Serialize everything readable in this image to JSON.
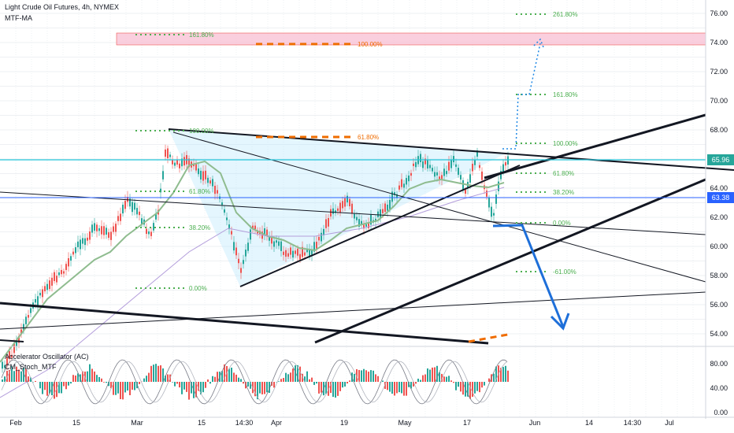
{
  "header": {
    "title": "Light Crude Oil Futures, 4h, NYMEX",
    "indicator": "MTF-MA"
  },
  "sub_pane": {
    "indicator_1": "Accelerator Oscillator (AC)",
    "indicator_2": "CM_Stoch_MTF"
  },
  "price_axis": {
    "ticks": [
      "76.00",
      "74.00",
      "72.00",
      "70.00",
      "68.00",
      "66.00",
      "64.00",
      "62.00",
      "60.00",
      "58.00",
      "56.00",
      "54.00"
    ],
    "last_price": "65.96",
    "last_price_color": "#26a69a",
    "ref_price": "63.38",
    "ref_price_color": "#2962ff"
  },
  "osc_axis": {
    "ticks": [
      "80.00",
      "40.00",
      "0.00"
    ]
  },
  "time_axis": {
    "labels": [
      "Feb",
      "15",
      "Mar",
      "15",
      "14:30",
      "Apr",
      "19",
      "May",
      "17",
      "Jun",
      "14",
      "14:30",
      "Jul"
    ]
  },
  "fib_labels": {
    "upper_1618": "161.80%",
    "upper_100": "100.00%",
    "mid_618": "61.80%",
    "left_100": "100.00%",
    "left_618": "61.80%",
    "left_382": "38.20%",
    "left_0": "0.00%",
    "r_2618": "261.80%",
    "r_1618": "161.80%",
    "r_100": "100.00%",
    "r_618": "61.80%",
    "r_382": "38.20%",
    "r_0": "0.00%",
    "r_neg61": "-61.00%"
  },
  "colors": {
    "fib_green": "#4caf50",
    "fib_orange": "#ef6c00",
    "resistance_zone": "#f8bbd0",
    "arrow_blue": "#1e6fd9",
    "ma_green": "#8fbc8f",
    "up_candle": "#26a69a",
    "down_candle": "#ef5350"
  }
}
